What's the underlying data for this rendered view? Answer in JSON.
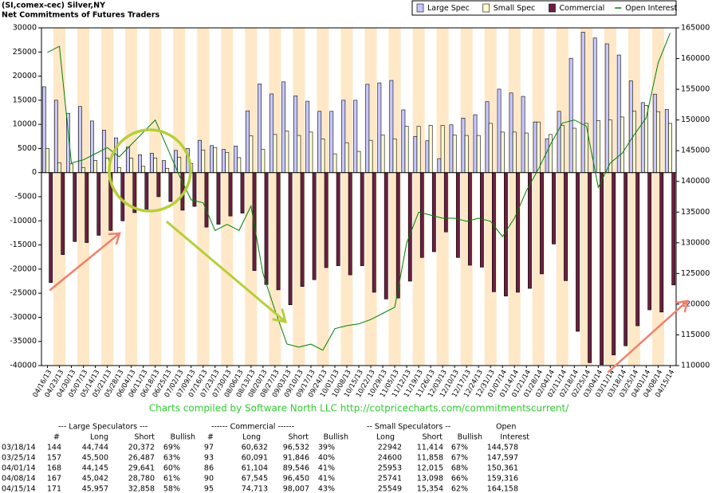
{
  "chart_data": {
    "type": "bar",
    "title": "(SI,comex-cec) Silver,NY",
    "subtitle": "Net Commitments of Futures Traders",
    "credit": "Charts compiled by Software North LLC  http://cotpricecharts.com/commitmentscurrent/",
    "categories": [
      "04/16/13",
      "04/23/13",
      "04/30/13",
      "05/07/13",
      "05/14/13",
      "05/21/13",
      "05/28/13",
      "06/04/13",
      "06/11/13",
      "06/18/13",
      "06/25/13",
      "07/02/13",
      "07/09/13",
      "07/16/13",
      "07/23/13",
      "07/30/13",
      "08/06/13",
      "08/13/13",
      "08/20/13",
      "08/27/13",
      "09/03/13",
      "09/10/13",
      "09/17/13",
      "09/24/13",
      "10/01/13",
      "10/08/13",
      "10/15/13",
      "10/22/13",
      "10/29/13",
      "11/05/13",
      "11/12/13",
      "11/19/13",
      "11/26/13",
      "12/03/13",
      "12/10/13",
      "12/17/13",
      "12/24/13",
      "12/31/13",
      "01/07/14",
      "01/14/14",
      "01/21/14",
      "01/28/14",
      "02/04/14",
      "02/11/14",
      "02/18/14",
      "02/25/14",
      "03/04/14",
      "03/11/14",
      "03/18/14",
      "03/25/14",
      "04/01/14",
      "04/08/14",
      "04/15/14"
    ],
    "series": [
      {
        "name": "Large Spec",
        "color": "#c8c8ff",
        "values": [
          17800,
          15000,
          12300,
          13700,
          10700,
          8800,
          7200,
          5300,
          3700,
          4000,
          2500,
          4600,
          5000,
          6700,
          5600,
          4800,
          5500,
          12800,
          18400,
          16300,
          18800,
          15900,
          14800,
          12700,
          12700,
          15000,
          15000,
          18300,
          18600,
          19100,
          13000,
          7500,
          6600,
          2900,
          9900,
          11300,
          12000,
          14700,
          17300,
          16500,
          15800,
          10500,
          7000,
          12700,
          23700,
          29100,
          27900,
          26700,
          24372,
          19013,
          14504,
          16262,
          13099
        ]
      },
      {
        "name": "Small Spec",
        "color": "#ffffd0",
        "values": [
          5000,
          2000,
          1800,
          1000,
          2500,
          3000,
          1000,
          3000,
          1300,
          3000,
          900,
          3200,
          1900,
          4700,
          5200,
          4200,
          3100,
          7600,
          4800,
          7900,
          8600,
          7700,
          8400,
          7000,
          3900,
          6200,
          4400,
          6700,
          7800,
          7000,
          9600,
          9600,
          9800,
          9800,
          7800,
          7700,
          7700,
          10200,
          8400,
          8400,
          8200,
          10500,
          7900,
          9800,
          9200,
          10200,
          10800,
          10900,
          11528,
          12742,
          13938,
          12643,
          10195
        ]
      },
      {
        "name": "Commercial",
        "color": "#6b2040",
        "values": [
          -22800,
          -17000,
          -14300,
          -14500,
          -13000,
          -12000,
          -10000,
          -8300,
          -8000,
          -5000,
          -6000,
          -7800,
          -7000,
          -11300,
          -10700,
          -9000,
          -8400,
          -20300,
          -23200,
          -24300,
          -27400,
          -23600,
          -22200,
          -19700,
          -19300,
          -21200,
          -19300,
          -24800,
          -26200,
          -26000,
          -22500,
          -17600,
          -16400,
          -12300,
          -17600,
          -19200,
          -19600,
          -24700,
          -25600,
          -24800,
          -24000,
          -21000,
          -14800,
          -22400,
          -32900,
          -39400,
          -39800,
          -37800,
          -35900,
          -31755,
          -28442,
          -28905,
          -23294
        ]
      },
      {
        "name": "Open Interest",
        "color": "#008000",
        "type": "line",
        "axis": "y2",
        "values": [
          161000,
          162000,
          143000,
          143500,
          144500,
          145500,
          144000,
          146000,
          148000,
          150000,
          145500,
          141000,
          137000,
          136500,
          132000,
          133000,
          132000,
          136000,
          125000,
          119000,
          113500,
          113000,
          113500,
          112500,
          116000,
          116500,
          116800,
          117500,
          118500,
          119500,
          130000,
          135000,
          134500,
          134000,
          134000,
          133500,
          134000,
          133500,
          131000,
          134000,
          138500,
          142000,
          146000,
          149500,
          150000,
          149000,
          139000,
          143000,
          144578,
          147597,
          150361,
          159316,
          164158
        ]
      }
    ],
    "ylim": [
      -40000,
      30000
    ],
    "yticks": [
      -40000,
      -35000,
      -30000,
      -25000,
      -20000,
      -15000,
      -10000,
      -5000,
      0,
      5000,
      10000,
      15000,
      20000,
      25000,
      30000
    ],
    "y2lim": [
      110000,
      165000
    ],
    "y2ticks": [
      110000,
      115000,
      120000,
      125000,
      130000,
      135000,
      140000,
      145000,
      150000,
      155000,
      160000,
      165000
    ],
    "band_color": "#ffe8c8",
    "legend": "top-right"
  },
  "table": {
    "header1": [
      "--- Large Speculators ---",
      "------ Commercial ------",
      "-- Small Speculators --",
      "Open"
    ],
    "header2": [
      "#",
      "Long",
      "Short",
      "Bullish",
      "#",
      "Long",
      "Short",
      "Bullish",
      "Long",
      "Short",
      "Bullish",
      "Interest"
    ],
    "rows": [
      [
        "03/18/14",
        "144",
        "44,744",
        "20,372",
        "69%",
        "97",
        "60,632",
        "96,532",
        "39%",
        "22942",
        "11,414",
        "67%",
        "144,578"
      ],
      [
        "03/25/14",
        "157",
        "45,500",
        "26,487",
        "63%",
        "93",
        "60,091",
        "91,846",
        "40%",
        "24600",
        "11,858",
        "67%",
        "147,597"
      ],
      [
        "04/01/14",
        "168",
        "44,145",
        "29,641",
        "60%",
        "86",
        "61,104",
        "89,546",
        "41%",
        "25953",
        "12,015",
        "68%",
        "150,361"
      ],
      [
        "04/08/14",
        "167",
        "45,042",
        "28,780",
        "61%",
        "90",
        "67,545",
        "96,450",
        "41%",
        "25741",
        "13,098",
        "66%",
        "159,316"
      ],
      [
        "04/15/14",
        "171",
        "45,957",
        "32,858",
        "58%",
        "95",
        "74,713",
        "98,007",
        "43%",
        "25549",
        "15,354",
        "62%",
        "164,158"
      ]
    ]
  }
}
